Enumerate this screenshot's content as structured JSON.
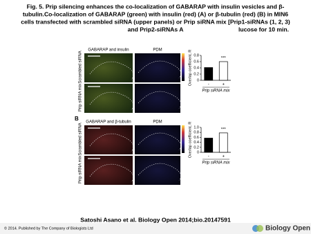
{
  "title_lines": [
    "Fig. 5. Prip silencing enhances the co-localization of GABARAP with insulin vesicles and β-",
    "tubulin.Co-localization of GABARAP (green) with insulin (red) (A) or β-tubulin (red) (B) in MIN6",
    "cells transfected with scrambled siRNA (upper panels) or Prip siRNA mix [Prip1-siRNAs (1, 2, 3)",
    "and Prip2-siRNAs A"
  ],
  "title_end": "lucose for 10 min.",
  "panels": [
    {
      "label": null,
      "image_titles": [
        "GABARAP and insulin",
        "PDM"
      ],
      "row_labels": [
        "Scrambled siRNA",
        "Prip siRNA mix"
      ],
      "chart": {
        "type": "bar",
        "ylabel": "Overlap coefficient, R",
        "ylim": [
          0,
          0.8
        ],
        "yticks": [
          0,
          0.2,
          0.4,
          0.6,
          0.8
        ],
        "categories": [
          "-",
          "+"
        ],
        "values": [
          0.41,
          0.6
        ],
        "colors": [
          "#000000",
          "#ffffff"
        ],
        "annotation": "***",
        "xlabel": "Prip siRNA mix"
      }
    },
    {
      "label": "B",
      "image_titles": [
        "GABARAP and β-tubulin",
        "PDM"
      ],
      "row_labels": [
        "Scrambled siRNA",
        "Prip siRNA mix"
      ],
      "chart": {
        "type": "bar",
        "ylabel": "Overlap coefficient, R",
        "ylim": [
          0,
          1
        ],
        "yticks": [
          0,
          0.2,
          0.4,
          0.6,
          0.8,
          {
            "value": 1,
            "label": "1.0"
          }
        ],
        "categories": [
          "-",
          "+"
        ],
        "values": [
          0.57,
          0.78
        ],
        "colors": [
          "#000000",
          "#ffffff"
        ],
        "annotation": "***",
        "xlabel": "Prip siRNA mix"
      }
    }
  ],
  "citation": "Satoshi Asano et al. Biology Open 2014;bio.20147591",
  "footer": "© 2014. Published by The Company of Biologists Ltd",
  "logo": "Biology Open"
}
